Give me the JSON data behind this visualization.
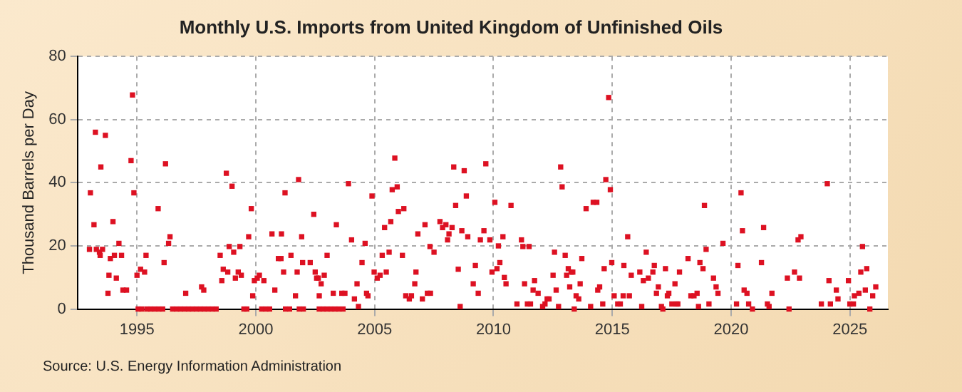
{
  "chart_data": {
    "type": "scatter",
    "title": "Monthly U.S. Imports from United Kingdom of Unfinished Oils",
    "ylabel": "Thousand Barrels per Day",
    "annotations": [
      "Source: U.S. Energy Information Administration"
    ],
    "xlim": [
      1992.5,
      2026.6
    ],
    "xticks": [
      1995,
      2000,
      2005,
      2010,
      2015,
      2020,
      2025
    ],
    "ylim": [
      0,
      80
    ],
    "yticks": [
      0,
      20,
      40,
      60,
      80
    ],
    "grid": true,
    "legend": false,
    "marker": "square",
    "series": [
      {
        "color": "#dd1122",
        "x": [
          1993.0,
          1993.04,
          1993.19,
          1993.25,
          1993.29,
          1993.42,
          1993.45,
          1993.48,
          1993.55,
          1993.67,
          1993.78,
          1993.82,
          1993.88,
          1993.99,
          1994.05,
          1994.13,
          1994.24,
          1994.35,
          1994.41,
          1994.56,
          1994.75,
          1994.81,
          1994.87,
          1995.0,
          1995.15,
          1995.32,
          1995.38,
          1995.89,
          1996.14,
          1996.2,
          1996.33,
          1996.39,
          1997.05,
          1997.72,
          1997.81,
          1998.5,
          1998.57,
          1998.63,
          1998.76,
          1998.82,
          1998.88,
          1999.0,
          1999.07,
          1999.14,
          1999.26,
          1999.33,
          1999.39,
          1999.7,
          1999.81,
          1999.87,
          1999.94,
          2000.06,
          2000.15,
          2000.34,
          2000.68,
          2000.8,
          2000.95,
          2001.06,
          2001.08,
          2001.17,
          2001.23,
          2001.48,
          2001.67,
          2001.74,
          2001.8,
          2001.93,
          2001.97,
          2002.29,
          2002.44,
          2002.5,
          2002.56,
          2002.63,
          2002.75,
          2002.67,
          2002.88,
          2003.0,
          2003.26,
          2003.39,
          2003.62,
          2003.75,
          2003.9,
          2004.03,
          2004.15,
          2004.26,
          2004.32,
          2004.47,
          2004.6,
          2004.66,
          2004.72,
          2004.89,
          2004.98,
          2005.11,
          2005.23,
          2005.32,
          2005.42,
          2005.49,
          2005.61,
          2005.68,
          2005.74,
          2005.85,
          2005.95,
          2006.0,
          2006.17,
          2006.23,
          2006.31,
          2006.46,
          2006.55,
          2006.69,
          2006.74,
          2006.82,
          2007.01,
          2007.12,
          2007.22,
          2007.35,
          2007.33,
          2007.5,
          2007.75,
          2007.86,
          2008.0,
          2008.07,
          2008.13,
          2008.26,
          2008.33,
          2008.41,
          2008.52,
          2008.6,
          2008.67,
          2008.77,
          2008.86,
          2008.92,
          2009.15,
          2009.24,
          2009.36,
          2009.45,
          2009.6,
          2009.68,
          2009.85,
          2009.94,
          2010.06,
          2010.15,
          2010.21,
          2010.27,
          2010.4,
          2010.46,
          2010.53,
          2010.74,
          2010.99,
          2011.18,
          2011.24,
          2011.31,
          2011.43,
          2011.5,
          2011.56,
          2011.67,
          2011.73,
          2011.88,
          2012.07,
          2012.17,
          2012.26,
          2012.34,
          2012.51,
          2012.57,
          2012.64,
          2012.74,
          2012.83,
          2012.89,
          2013.02,
          2013.08,
          2013.15,
          2013.21,
          2013.27,
          2013.34,
          2013.4,
          2013.48,
          2013.59,
          2013.65,
          2013.72,
          2013.9,
          2014.09,
          2014.2,
          2014.35,
          2014.39,
          2014.47,
          2014.6,
          2014.66,
          2014.73,
          2014.85,
          2014.92,
          2014.98,
          2015.08,
          2015.23,
          2015.34,
          2015.46,
          2015.49,
          2015.65,
          2015.72,
          2015.8,
          2016.16,
          2016.24,
          2016.31,
          2016.43,
          2016.52,
          2016.71,
          2016.77,
          2016.86,
          2016.94,
          2017.07,
          2017.13,
          2017.24,
          2017.32,
          2017.38,
          2017.51,
          2017.64,
          2017.7,
          2017.76,
          2017.83,
          2018.19,
          2018.31,
          2018.44,
          2018.57,
          2018.63,
          2018.69,
          2018.82,
          2018.88,
          2018.95,
          2019.07,
          2019.26,
          2019.37,
          2019.45,
          2019.66,
          2020.23,
          2020.29,
          2020.42,
          2020.48,
          2020.55,
          2020.67,
          2020.74,
          2020.9,
          2021.28,
          2021.37,
          2021.53,
          2021.6,
          2021.72,
          2022.37,
          2022.44,
          2022.67,
          2022.82,
          2022.88,
          2022.94,
          2023.8,
          2024.05,
          2024.12,
          2024.18,
          2024.43,
          2024.5,
          2024.94,
          2025.0,
          2025.15,
          2025.19,
          2025.38,
          2025.46,
          2025.53,
          2025.65,
          2025.71,
          2025.84,
          2025.96,
          2026.09,
          1995.05,
          1995.2,
          1995.42,
          1995.58,
          1995.75,
          1995.92,
          1996.08,
          1996.5,
          1996.67,
          1996.83,
          1997.0,
          1997.17,
          1997.33,
          1997.5,
          1997.67,
          1997.83,
          1998.0,
          1998.17,
          1998.33,
          1999.5,
          1999.62,
          2000.25,
          2000.42,
          2000.58,
          2001.25,
          2001.42,
          2001.83,
          2002.0,
          2002.67,
          2002.83,
          2003.0,
          2003.17,
          2003.33,
          2003.5,
          2003.67
        ],
        "values": [
          18.9,
          36.8,
          26.7,
          56,
          18.9,
          18,
          17,
          45,
          18.9,
          55,
          5,
          10.7,
          16,
          27.7,
          17,
          9.8,
          20.8,
          17,
          6,
          6,
          47,
          67.8,
          36.8,
          10.7,
          12.6,
          11.7,
          17,
          31.8,
          14.7,
          46,
          20.8,
          22.9,
          5,
          7,
          6,
          17,
          9,
          12.6,
          43,
          11.7,
          19.8,
          38.9,
          18,
          9.8,
          11.7,
          19.8,
          10.7,
          22.9,
          31.8,
          4.2,
          9,
          9.8,
          10.7,
          9,
          23.8,
          6,
          16,
          16,
          23.8,
          11.7,
          36.8,
          17,
          4.2,
          11.7,
          41,
          22.9,
          14.7,
          14.7,
          30,
          11.7,
          9.8,
          9.8,
          8,
          4.2,
          10.7,
          17,
          5,
          26.7,
          5,
          5,
          39.7,
          21.9,
          3.2,
          8,
          0.8,
          14.7,
          20.8,
          5,
          4.2,
          35.8,
          11.7,
          9.8,
          10.7,
          17,
          25.8,
          11.7,
          18,
          27.7,
          37.8,
          47.8,
          38.7,
          30.9,
          17,
          31.8,
          4.2,
          3.2,
          4.2,
          8,
          11.7,
          23.8,
          3.2,
          26.7,
          5,
          5,
          19.8,
          18,
          27.7,
          25.8,
          26.7,
          21.9,
          23.8,
          25.8,
          45,
          32.8,
          12.6,
          0.8,
          24.8,
          43.8,
          35.8,
          22.9,
          8,
          13.8,
          5,
          21.9,
          24.8,
          46,
          21.9,
          11.7,
          33.8,
          12.8,
          20,
          14.7,
          22.9,
          10,
          8,
          32.8,
          1.6,
          21.9,
          19.8,
          8,
          1.6,
          19.8,
          1.6,
          6,
          9,
          5,
          0.8,
          1.6,
          3.2,
          3.2,
          10.7,
          18,
          6,
          0.8,
          45,
          38.7,
          17,
          10.7,
          12.8,
          7,
          11.7,
          11.7,
          0,
          4.2,
          3.2,
          8,
          16,
          31.8,
          0.8,
          33.8,
          33.8,
          6,
          7,
          1.6,
          12.8,
          41,
          67,
          37.8,
          14.7,
          4.2,
          1.6,
          1.6,
          4.2,
          13.8,
          22.9,
          4.2,
          10.7,
          11.7,
          0.8,
          9,
          18,
          9.8,
          11.7,
          13.8,
          5,
          7,
          0.8,
          0,
          12.8,
          4.2,
          5,
          1.6,
          8,
          1.6,
          1.6,
          11.7,
          16,
          4.2,
          4.2,
          5,
          0.8,
          14.7,
          12.8,
          32.8,
          18.9,
          1.6,
          9.8,
          7,
          5,
          20.8,
          1.6,
          13.8,
          36.8,
          24.8,
          6,
          5,
          1.6,
          0,
          14.7,
          25.8,
          1.6,
          0.8,
          5,
          9.8,
          0,
          11.7,
          21.9,
          9.8,
          22.9,
          1.6,
          39.7,
          9,
          1.6,
          6,
          3.2,
          9,
          1.6,
          1.6,
          4.2,
          5,
          11.7,
          19.8,
          6,
          12.8,
          0,
          4.2,
          7,
          0,
          0,
          0,
          0,
          0,
          0,
          0,
          0,
          0,
          0,
          0,
          0,
          0,
          0,
          0,
          0,
          0,
          0,
          0,
          0,
          0,
          0,
          0,
          0,
          0,
          0,
          0,
          0,
          0,
          0,
          0,
          0,
          0,
          0,
          0
        ]
      }
    ]
  }
}
